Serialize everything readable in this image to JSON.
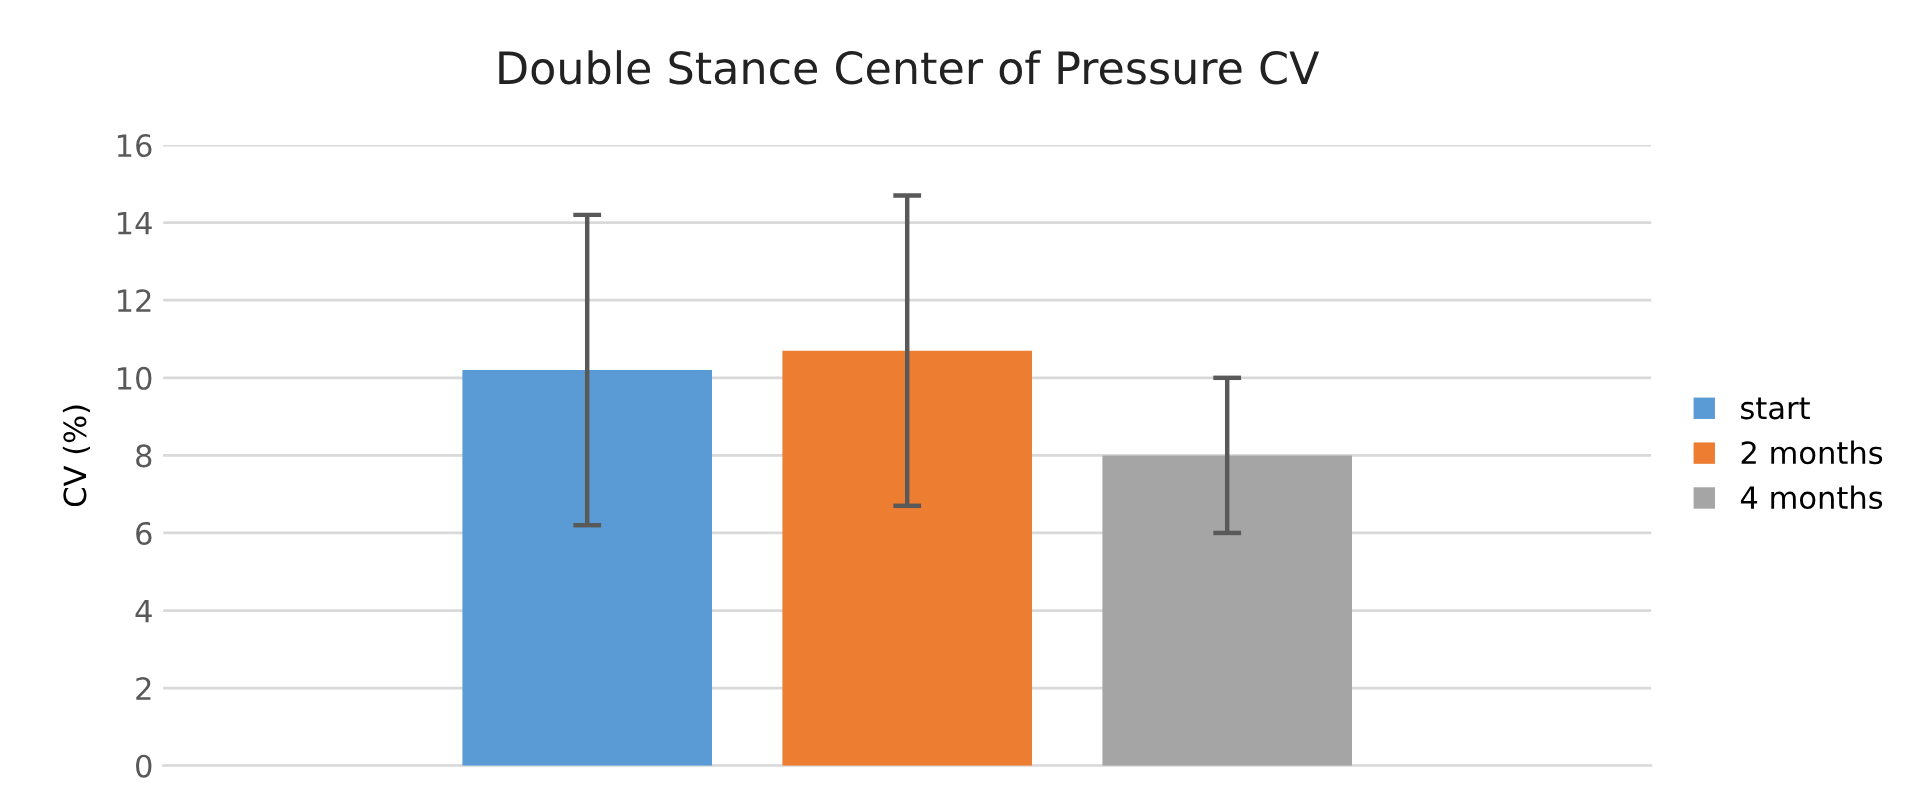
{
  "chart_data": {
    "type": "bar",
    "title": "Double Stance Center of Pressure CV",
    "ylabel": "CV (%)",
    "categories": [
      null
    ],
    "series": [
      {
        "name": "start",
        "color": "#5b9bd5",
        "values": [
          10.2
        ],
        "errors": [
          4
        ]
      },
      {
        "name": "2 months",
        "color": "#ed7d31",
        "values": [
          10.7
        ],
        "errors": [
          4
        ]
      },
      {
        "name": "4 months",
        "color": "#a5a5a5",
        "values": [
          8.0
        ],
        "errors": [
          2
        ]
      }
    ],
    "ylim": [
      0,
      16
    ],
    "yticks": [
      0,
      2,
      4,
      6,
      8,
      10,
      12,
      14,
      16
    ],
    "grid": "y",
    "legend": "right"
  }
}
